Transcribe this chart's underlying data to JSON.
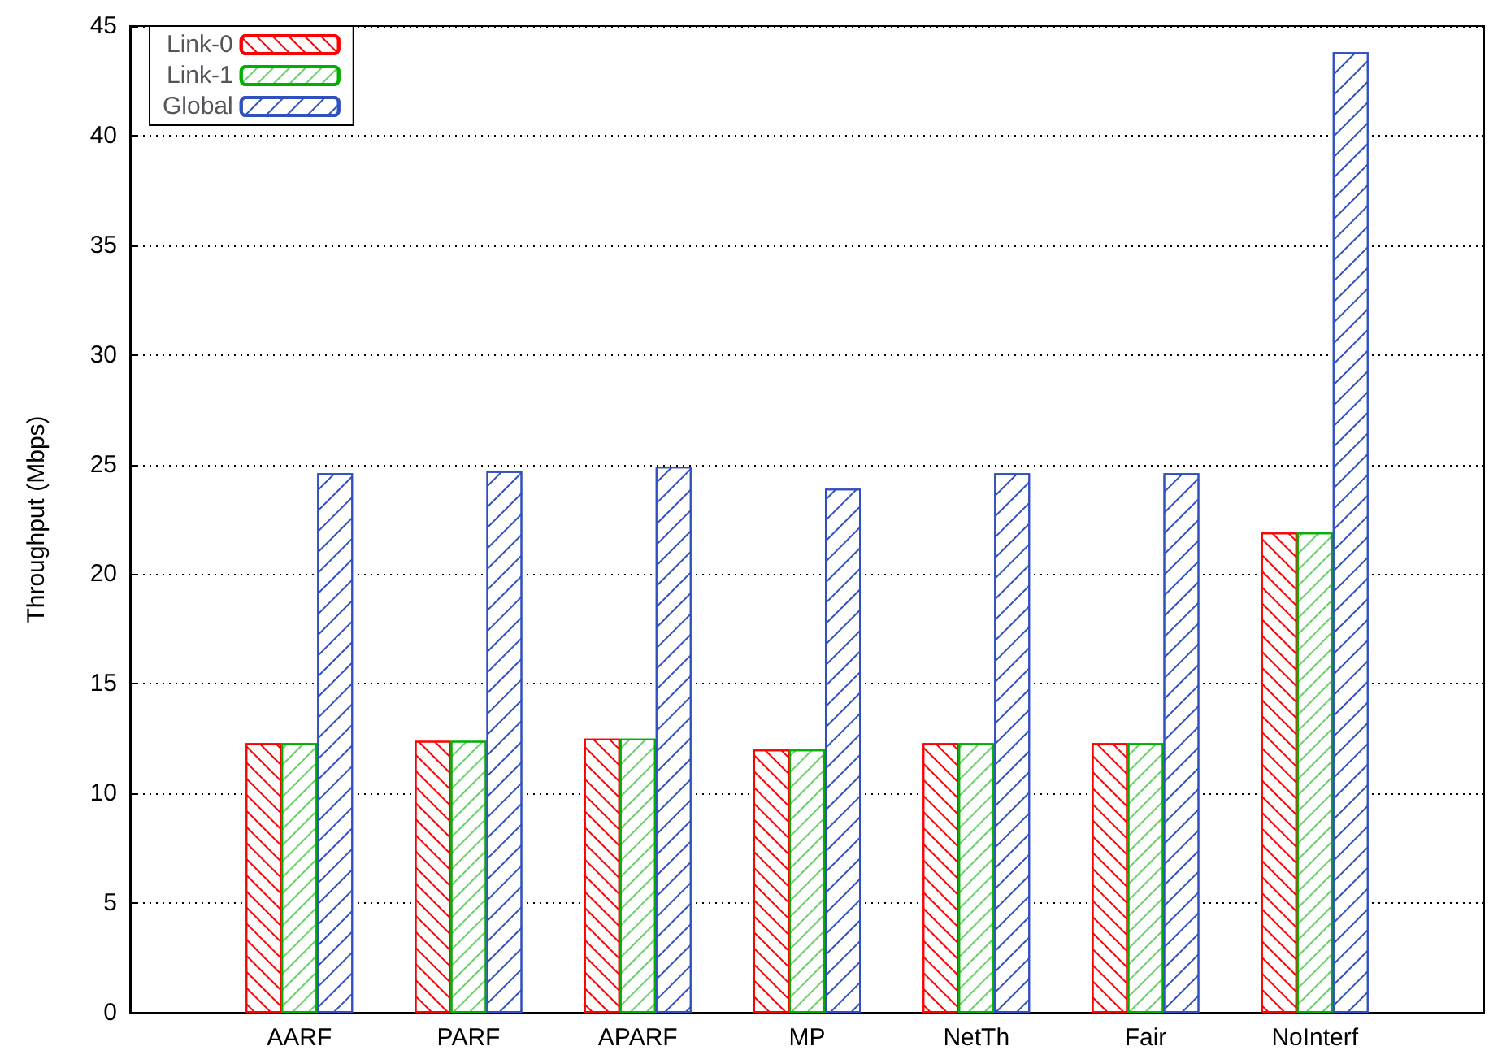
{
  "chart_data": {
    "type": "bar",
    "ylabel": "Throughput (Mbps)",
    "categories": [
      null,
      "AARF",
      "PARF",
      "APARF",
      "MP",
      "NetTh",
      "Fair",
      "NoInterf",
      null
    ],
    "series": [
      {
        "name": "Link-0",
        "color": "#ff0000",
        "values": [
          null,
          12.3,
          12.4,
          12.5,
          12.0,
          12.3,
          12.3,
          21.9,
          null
        ]
      },
      {
        "name": "Link-1",
        "color": "#00b000",
        "values": [
          null,
          12.3,
          12.4,
          12.5,
          12.0,
          12.3,
          12.3,
          21.9,
          null
        ]
      },
      {
        "name": "Global",
        "color": "#3050c0",
        "values": [
          null,
          24.6,
          24.7,
          24.9,
          23.9,
          24.6,
          24.6,
          43.8,
          null
        ]
      }
    ],
    "ylim": [
      0,
      45
    ],
    "yticks": [
      0,
      5,
      10,
      15,
      20,
      25,
      30,
      35,
      40,
      45
    ],
    "grid": "y",
    "legend": "top left"
  }
}
